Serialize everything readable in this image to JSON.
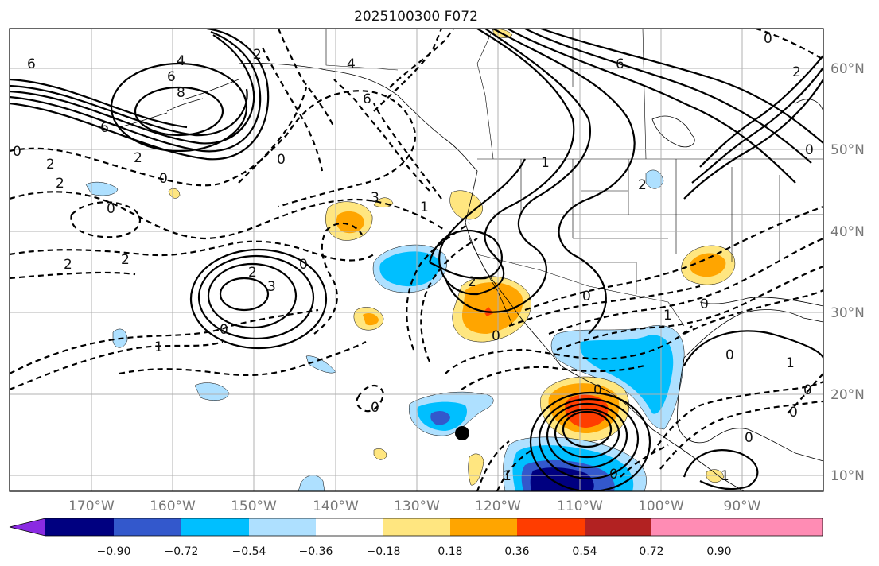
{
  "title": "2025100300 F072",
  "map": {
    "lat_labels": [
      "60°N",
      "50°N",
      "40°N",
      "30°N",
      "20°N",
      "10°N"
    ],
    "lon_labels": [
      "170°W",
      "160°W",
      "150°W",
      "140°W",
      "130°W",
      "120°W",
      "110°W",
      "100°W",
      "90°W"
    ],
    "contour_labels": [
      "6",
      "4",
      "6",
      "8",
      "6",
      "2",
      "0",
      "2",
      "2",
      "0",
      "0",
      "2",
      "0",
      "2",
      "0",
      "0",
      "1",
      "0",
      "2",
      "3",
      "4",
      "6",
      "6",
      "0",
      "0",
      "2",
      "0",
      "0",
      "1",
      "0",
      "3",
      "0",
      "1",
      "0",
      "0",
      "1",
      "2",
      "0",
      "1",
      "1",
      "2",
      "0",
      "1",
      "0",
      "2"
    ]
  },
  "colorbar": {
    "ticks": [
      "−0.90",
      "−0.72",
      "−0.54",
      "−0.36",
      "−0.18",
      "0.18",
      "0.36",
      "0.54",
      "0.72",
      "0.90"
    ],
    "colors": [
      "#8a2be2",
      "#000080",
      "#3358cc",
      "#00bfff",
      "#aee0ff",
      "#ffffff",
      "#ffe680",
      "#ffa500",
      "#ff3d00",
      "#b22222",
      "#ff8cb4"
    ]
  },
  "marker": "storm-center-dot"
}
